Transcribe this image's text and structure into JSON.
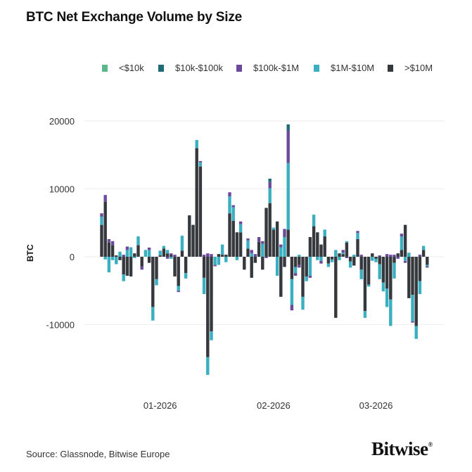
{
  "title": "BTC Net Exchange Volume by Size",
  "source": "Source: Glassnode, Bitwise Europe",
  "logo": {
    "text": "Bitwise",
    "mark": "®"
  },
  "chart_data": {
    "type": "bar",
    "stacked": true,
    "title": "BTC Net Exchange Volume by Size",
    "xlabel": "",
    "ylabel": "BTC",
    "ylim": [
      -20000,
      21000
    ],
    "yticks": [
      20000,
      10000,
      0,
      -10000
    ],
    "grid": true,
    "legend_position": "top",
    "x_ticks": [
      {
        "label": "01-2026",
        "date": "2026-01-01"
      },
      {
        "label": "02-2026",
        "date": "2026-02-01"
      },
      {
        "label": "03-2026",
        "date": "2026-03-01"
      }
    ],
    "categories": [
      "2025-12-16",
      "2025-12-17",
      "2025-12-18",
      "2025-12-19",
      "2025-12-20",
      "2025-12-21",
      "2025-12-22",
      "2025-12-23",
      "2025-12-24",
      "2025-12-25",
      "2025-12-26",
      "2025-12-27",
      "2025-12-28",
      "2025-12-29",
      "2025-12-30",
      "2025-12-31",
      "2026-01-01",
      "2026-01-02",
      "2026-01-03",
      "2026-01-04",
      "2026-01-05",
      "2026-01-06",
      "2026-01-07",
      "2026-01-08",
      "2026-01-09",
      "2026-01-10",
      "2026-01-11",
      "2026-01-12",
      "2026-01-13",
      "2026-01-14",
      "2026-01-15",
      "2026-01-16",
      "2026-01-17",
      "2026-01-18",
      "2026-01-19",
      "2026-01-20",
      "2026-01-21",
      "2026-01-22",
      "2026-01-23",
      "2026-01-24",
      "2026-01-25",
      "2026-01-26",
      "2026-01-27",
      "2026-01-28",
      "2026-01-29",
      "2026-01-30",
      "2026-01-31",
      "2026-02-01",
      "2026-02-02",
      "2026-02-03",
      "2026-02-04",
      "2026-02-05",
      "2026-02-06",
      "2026-02-07",
      "2026-02-08",
      "2026-02-09",
      "2026-02-10",
      "2026-02-11",
      "2026-02-12",
      "2026-02-13",
      "2026-02-14",
      "2026-02-15",
      "2026-02-16",
      "2026-02-17",
      "2026-02-18",
      "2026-02-19",
      "2026-02-20",
      "2026-02-21",
      "2026-02-22",
      "2026-02-23",
      "2026-02-24",
      "2026-02-25",
      "2026-02-26",
      "2026-02-27",
      "2026-02-28",
      "2026-03-01",
      "2026-03-02",
      "2026-03-03",
      "2026-03-04",
      "2026-03-05",
      "2026-03-06",
      "2026-03-07",
      "2026-03-08",
      "2026-03-09",
      "2026-03-10",
      "2026-03-11",
      "2026-03-12",
      "2026-03-13",
      "2026-03-14",
      "2026-03-15"
    ],
    "series": [
      {
        "name": ">$10M",
        "color": "#35393e",
        "values": [
          4700,
          8100,
          2100,
          1700,
          200,
          -500,
          -2600,
          -2800,
          -2900,
          500,
          1700,
          -1400,
          0,
          -900,
          -7400,
          -3300,
          200,
          1200,
          500,
          300,
          -2900,
          -4300,
          900,
          -2400,
          6100,
          4700,
          16000,
          13300,
          -3100,
          -14800,
          -11000,
          0,
          400,
          300,
          300,
          6400,
          5300,
          3600,
          3600,
          -1900,
          1200,
          -3100,
          -900,
          2200,
          -1900,
          7200,
          7900,
          4000,
          5200,
          -5900,
          -1500,
          4000,
          -3300,
          -1500,
          -1200,
          -5900,
          -2900,
          2900,
          4500,
          3600,
          1800,
          3000,
          -1000,
          -400,
          -9000,
          500,
          400,
          2100,
          -700,
          -1300,
          2600,
          -1900,
          -8000,
          -4100,
          500,
          -300,
          -1100,
          -3800,
          -4700,
          -6300,
          -900,
          500,
          1000,
          4700,
          -6100,
          -5600,
          -10200,
          -3600,
          1000,
          -1200
        ]
      },
      {
        "name": "$1M-$10M",
        "color": "#3aafc0",
        "values": [
          1200,
          -400,
          -2300,
          -500,
          -1100,
          750,
          -1000,
          1000,
          1400,
          -200,
          1300,
          0,
          1000,
          1000,
          -2000,
          -900,
          700,
          400,
          500,
          -300,
          0,
          -700,
          2200,
          -800,
          0,
          0,
          1200,
          600,
          -2400,
          -2600,
          -1300,
          -1200,
          -1200,
          1500,
          -800,
          2500,
          2000,
          -500,
          1200,
          0,
          1200,
          500,
          0,
          0,
          1900,
          0,
          2200,
          300,
          -2800,
          1400,
          2900,
          9800,
          -3800,
          -900,
          300,
          -1900,
          -700,
          -2800,
          1700,
          -500,
          -600,
          1000,
          -500,
          -400,
          1000,
          -500,
          200,
          200,
          -900,
          300,
          900,
          -1400,
          -1000,
          -300,
          -600,
          -500,
          -2200,
          -1300,
          -2700,
          -3900,
          -2300,
          0,
          2000,
          -600,
          600,
          -3900,
          -1900,
          -1900,
          600,
          -200
        ]
      },
      {
        "name": "$100k-$1M",
        "color": "#6b4a9b",
        "values": [
          500,
          1000,
          500,
          600,
          0,
          0,
          300,
          500,
          0,
          0,
          0,
          -500,
          0,
          350,
          0,
          0,
          0,
          0,
          -300,
          200,
          300,
          -200,
          0,
          0,
          0,
          0,
          0,
          200,
          300,
          500,
          400,
          -200,
          0,
          0,
          0,
          600,
          300,
          0,
          400,
          0,
          300,
          500,
          400,
          700,
          400,
          -200,
          900,
          0,
          0,
          400,
          1200,
          4800,
          -800,
          -400,
          -400,
          0,
          0,
          -300,
          0,
          0,
          -400,
          0,
          0,
          0,
          0,
          0,
          400,
          -200,
          0,
          0,
          300,
          300,
          0,
          0,
          0,
          0,
          200,
          0,
          400,
          300,
          300,
          -300,
          400,
          -300,
          0,
          -200,
          0,
          300,
          0,
          -200
        ]
      },
      {
        "name": "$10k-$100k",
        "color": "#1f6b75",
        "values": [
          0,
          0,
          0,
          0,
          0,
          0,
          0,
          0,
          0,
          0,
          0,
          0,
          0,
          0,
          0,
          0,
          0,
          0,
          0,
          0,
          0,
          0,
          0,
          0,
          0,
          0,
          0,
          0,
          0,
          0,
          0,
          0,
          0,
          0,
          0,
          0,
          0,
          0,
          0,
          0,
          0,
          0,
          0,
          0,
          0,
          0,
          500,
          0,
          0,
          0,
          0,
          900,
          0,
          0,
          0,
          0,
          0,
          0,
          0,
          0,
          0,
          0,
          0,
          0,
          0,
          0,
          0,
          0,
          0,
          0,
          0,
          0,
          0,
          0,
          0,
          0,
          0,
          0,
          0,
          0,
          0,
          0,
          0,
          0,
          0,
          0,
          0,
          0,
          0,
          0
        ]
      },
      {
        "name": "<$10k",
        "color": "#5cb88a",
        "values": [
          0,
          0,
          0,
          0,
          0,
          0,
          0,
          0,
          0,
          0,
          0,
          0,
          0,
          0,
          0,
          0,
          0,
          0,
          0,
          0,
          0,
          0,
          0,
          0,
          0,
          0,
          0,
          0,
          0,
          0,
          0,
          0,
          0,
          0,
          0,
          0,
          0,
          0,
          0,
          0,
          0,
          0,
          0,
          0,
          0,
          0,
          0,
          0,
          0,
          0,
          0,
          0,
          0,
          0,
          0,
          0,
          0,
          0,
          0,
          0,
          0,
          0,
          0,
          0,
          0,
          0,
          0,
          0,
          0,
          0,
          0,
          0,
          0,
          0,
          0,
          0,
          0,
          0,
          0,
          0,
          0,
          0,
          0,
          0,
          0,
          0,
          0,
          0,
          0,
          0
        ]
      }
    ],
    "legend_order": [
      "<$10k",
      "$10k-$100k",
      "$100k-$1M",
      "$1M-$10M",
      ">$10M"
    ]
  }
}
